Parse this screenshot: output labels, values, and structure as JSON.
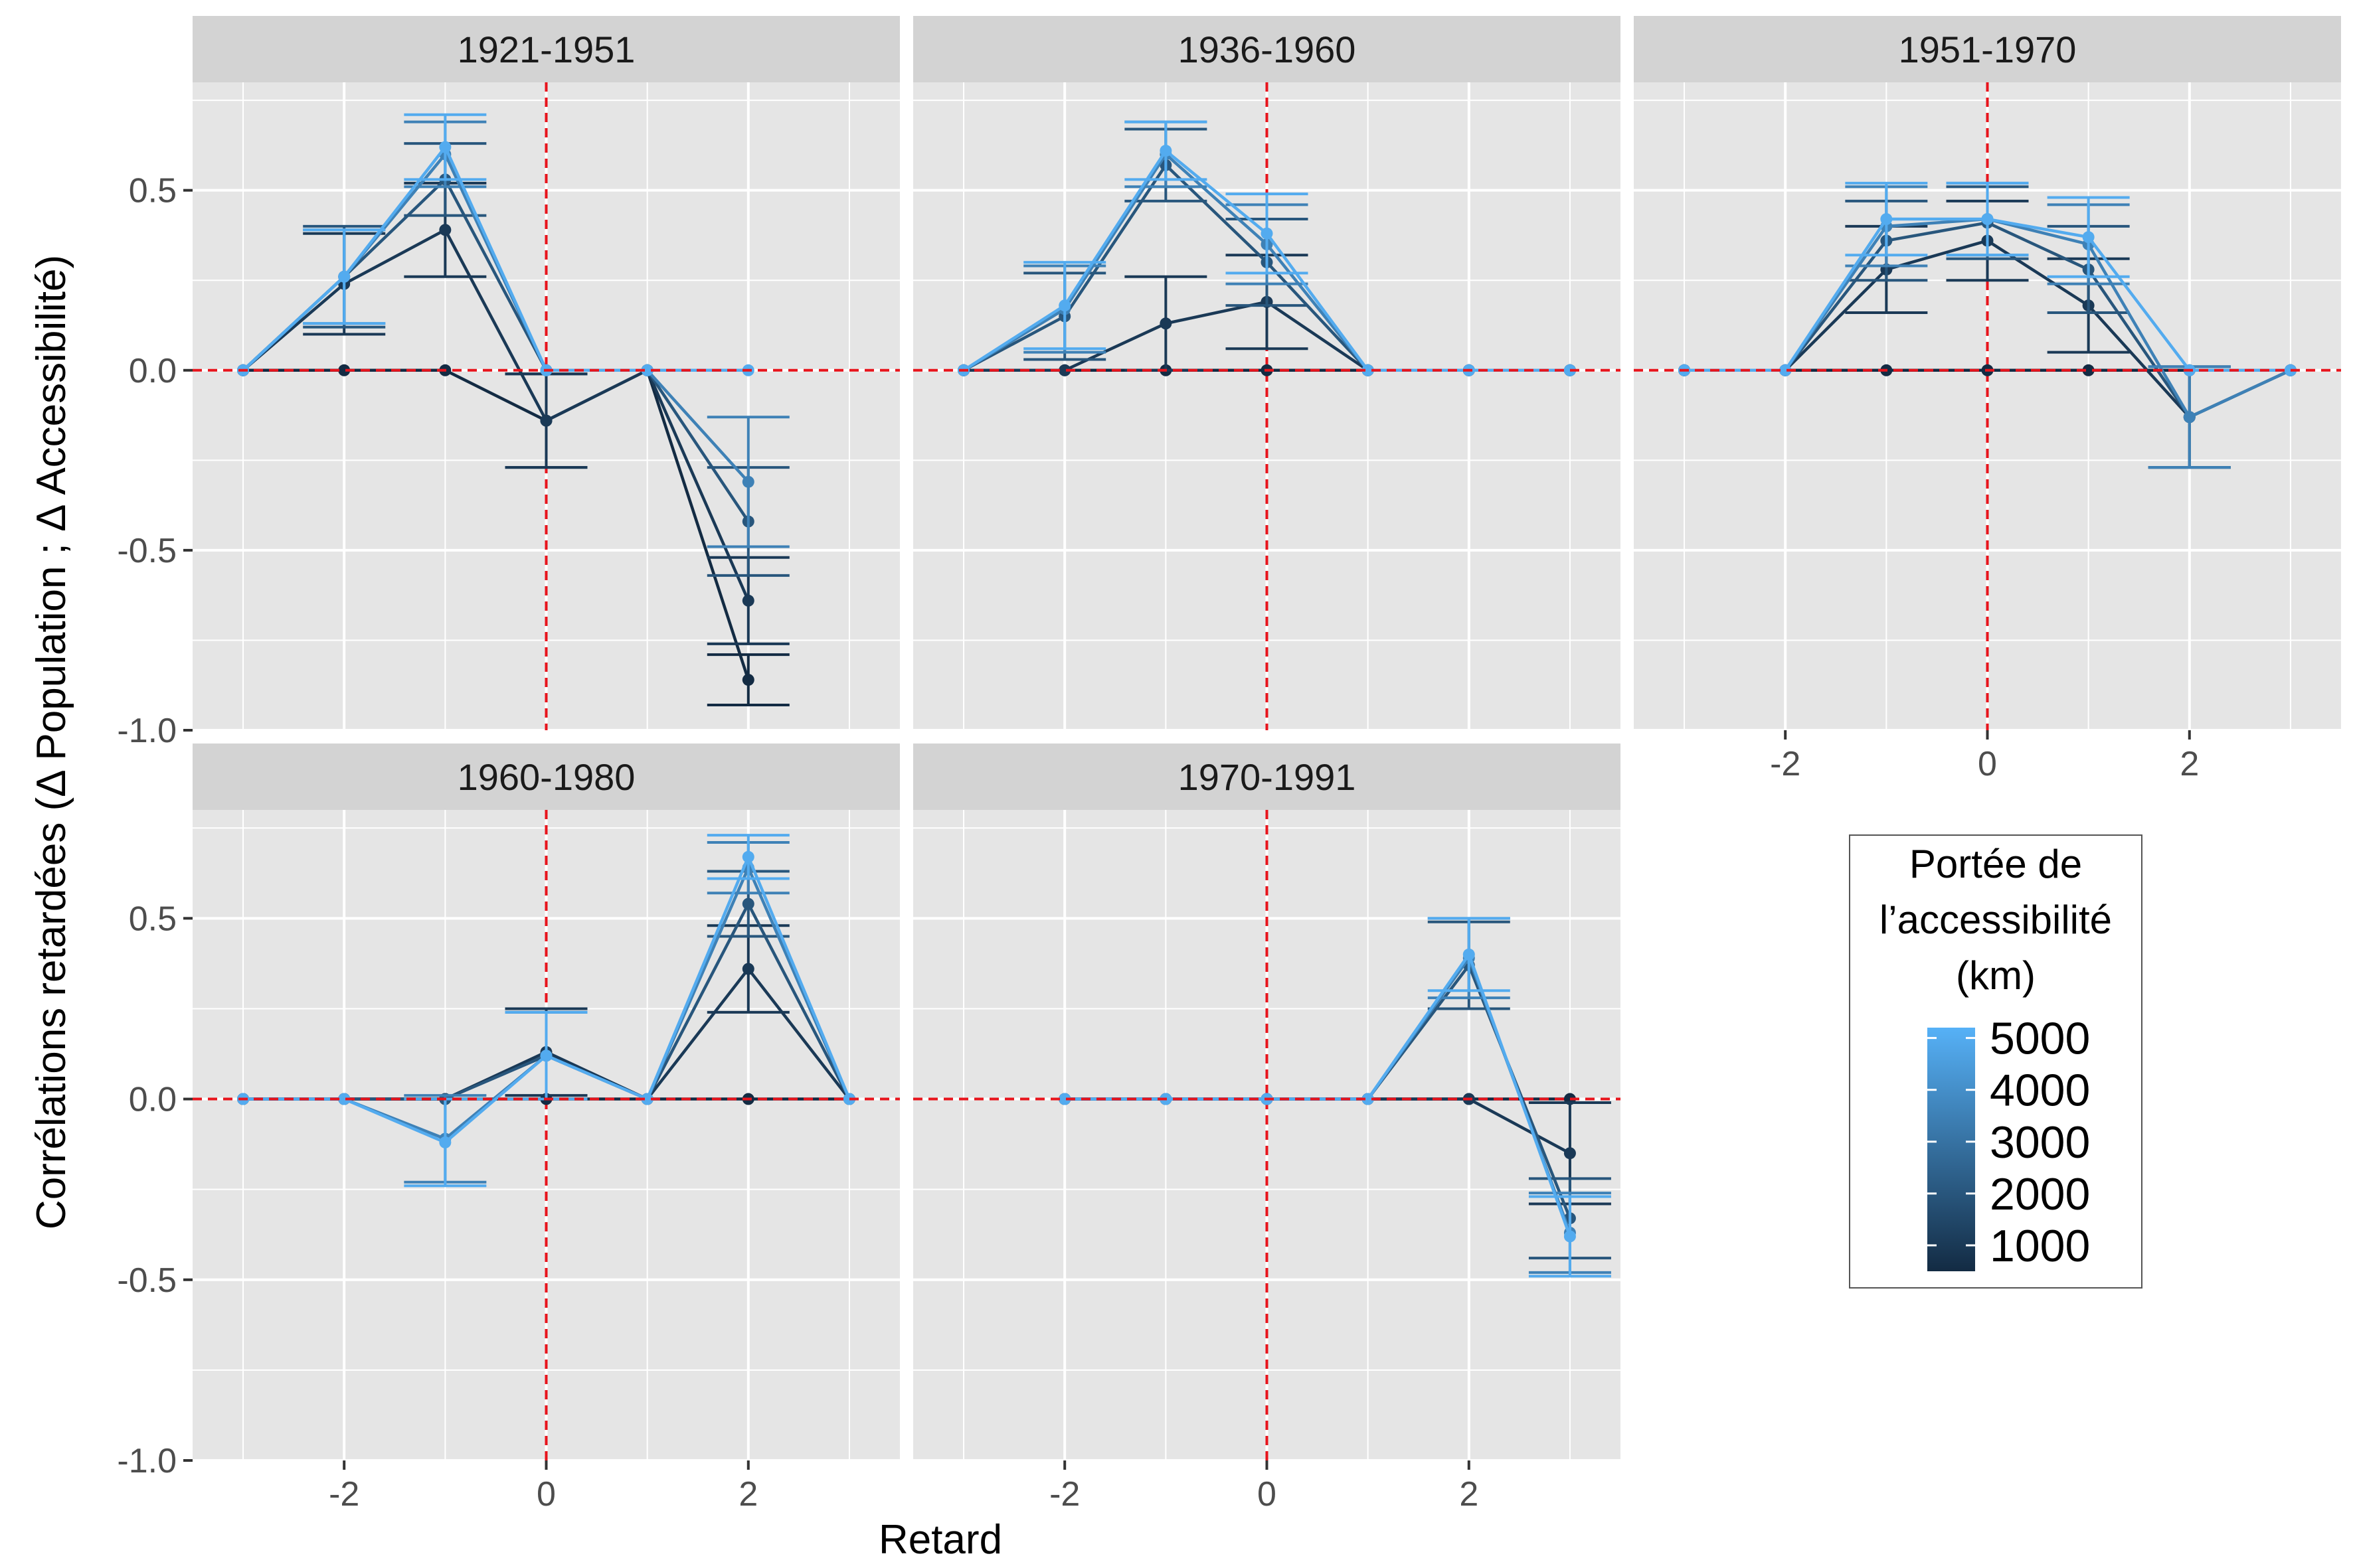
{
  "chart_data": {
    "type": "line",
    "xlabel": "Retard",
    "ylabel": "Corrélations retardées (Δ Population ; Δ Accessibilité)",
    "xlim": [
      -3.5,
      3.5
    ],
    "ylim": [
      -1.0,
      0.8
    ],
    "x_ticks": [
      -2,
      0,
      2
    ],
    "y_ticks": [
      -1.0,
      -0.5,
      0.0,
      0.5
    ],
    "x_tick_labels": [
      "-2",
      "0",
      "2"
    ],
    "y_tick_labels": [
      "-1.0",
      "-0.5",
      "0.0",
      "0.5"
    ],
    "reference_lines": {
      "x": 0,
      "y": 0,
      "style": "dashed",
      "color": "#e8141c"
    },
    "grid": true,
    "colors": {
      "panel_bg": "#e5e5e5",
      "strip_bg": "#d3d3d3",
      "grid": "#ffffff",
      "low": "#132b43",
      "high": "#56b1f7"
    },
    "legend": {
      "title": [
        "Portée de",
        "l’accessibilité",
        "(km)"
      ],
      "labels": [
        "5000",
        "4000",
        "3000",
        "2000",
        "1000"
      ],
      "values": [
        5000,
        4000,
        3000,
        2000,
        1000
      ],
      "range": [
        500,
        5200
      ],
      "placement": "right"
    },
    "panels": [
      {
        "title": "1921-1951",
        "series": [
          {
            "range": 500,
            "x": [
              -3,
              -2,
              -1,
              0,
              1,
              2
            ],
            "y": [
              0,
              0,
              0,
              -0.14,
              0,
              -0.86
            ],
            "err": [
              0,
              0,
              0,
              0.13,
              0,
              0.07
            ]
          },
          {
            "range": 1000,
            "x": [
              -3,
              -2,
              -1,
              0,
              1,
              2
            ],
            "y": [
              0,
              0.24,
              0.39,
              -0.14,
              0,
              -0.64
            ],
            "err": [
              0,
              0.14,
              0.13,
              0.13,
              0,
              0.12
            ]
          },
          {
            "range": 2000,
            "x": [
              -3,
              -2,
              -1,
              0,
              1,
              2
            ],
            "y": [
              0,
              0.26,
              0.53,
              0,
              0,
              -0.42
            ],
            "err": [
              0,
              0.14,
              0.1,
              0,
              0,
              0.15
            ]
          },
          {
            "range": 3500,
            "x": [
              -3,
              -2,
              -1,
              0,
              1,
              2
            ],
            "y": [
              0,
              0.26,
              0.6,
              0,
              0,
              -0.31
            ],
            "err": [
              0,
              0.13,
              0.09,
              0,
              0,
              0.18
            ]
          },
          {
            "range": 5000,
            "x": [
              -3,
              -2,
              -1,
              0,
              1,
              2
            ],
            "y": [
              0,
              0.26,
              0.62,
              0,
              0,
              0
            ],
            "err": [
              0,
              0.13,
              0.09,
              0,
              0,
              0
            ]
          }
        ]
      },
      {
        "title": "1936-1960",
        "series": [
          {
            "range": 500,
            "x": [
              -3,
              -2,
              -1,
              0,
              1,
              2,
              3
            ],
            "y": [
              0,
              0,
              0,
              0,
              0,
              0,
              0
            ],
            "err": [
              0,
              0,
              0,
              0,
              0,
              0,
              0
            ]
          },
          {
            "range": 1000,
            "x": [
              -3,
              -2,
              -1,
              0,
              1,
              2,
              3
            ],
            "y": [
              0,
              0,
              0.13,
              0.19,
              0,
              0,
              0
            ],
            "err": [
              0,
              0,
              0.13,
              0.13,
              0,
              0,
              0
            ]
          },
          {
            "range": 2000,
            "x": [
              -3,
              -2,
              -1,
              0,
              1,
              2,
              3
            ],
            "y": [
              0,
              0.15,
              0.57,
              0.3,
              0,
              0,
              0
            ],
            "err": [
              0,
              0.12,
              0.1,
              0.12,
              0,
              0,
              0
            ]
          },
          {
            "range": 3500,
            "x": [
              -3,
              -2,
              -1,
              0,
              1,
              2,
              3
            ],
            "y": [
              0,
              0.17,
              0.6,
              0.35,
              0,
              0,
              0
            ],
            "err": [
              0,
              0.12,
              0.09,
              0.11,
              0,
              0,
              0
            ]
          },
          {
            "range": 5000,
            "x": [
              -3,
              -2,
              -1,
              0,
              1,
              2,
              3
            ],
            "y": [
              0,
              0.18,
              0.61,
              0.38,
              0,
              0,
              0
            ],
            "err": [
              0,
              0.12,
              0.08,
              0.11,
              0,
              0,
              0
            ]
          }
        ]
      },
      {
        "title": "1951-1970",
        "series": [
          {
            "range": 500,
            "x": [
              -3,
              -2,
              -1,
              0,
              1,
              2,
              3
            ],
            "y": [
              0,
              0,
              0,
              0,
              0,
              0,
              0
            ],
            "err": [
              0,
              0,
              0,
              0,
              0,
              0,
              0
            ]
          },
          {
            "range": 1000,
            "x": [
              -3,
              -2,
              -1,
              0,
              1,
              2,
              3
            ],
            "y": [
              0,
              0,
              0.28,
              0.36,
              0.18,
              -0.13,
              0
            ],
            "err": [
              0,
              0,
              0.12,
              0.11,
              0.13,
              0.14,
              0
            ]
          },
          {
            "range": 2000,
            "x": [
              -3,
              -2,
              -1,
              0,
              1,
              2,
              3
            ],
            "y": [
              0,
              0,
              0.36,
              0.41,
              0.28,
              -0.13,
              0
            ],
            "err": [
              0,
              0,
              0.11,
              0.1,
              0.12,
              0.14,
              0
            ]
          },
          {
            "range": 3500,
            "x": [
              -3,
              -2,
              -1,
              0,
              1,
              2,
              3
            ],
            "y": [
              0,
              0,
              0.4,
              0.42,
              0.35,
              -0.13,
              0
            ],
            "err": [
              0,
              0,
              0.11,
              0.1,
              0.11,
              0.14,
              0
            ]
          },
          {
            "range": 5000,
            "x": [
              -3,
              -2,
              -1,
              0,
              1,
              2,
              3
            ],
            "y": [
              0,
              0,
              0.42,
              0.42,
              0.37,
              0,
              0
            ],
            "err": [
              0,
              0,
              0.1,
              0.1,
              0.11,
              0,
              0
            ]
          }
        ]
      },
      {
        "title": "1960-1980",
        "series": [
          {
            "range": 500,
            "x": [
              -3,
              -2,
              -1,
              0,
              1,
              2,
              3
            ],
            "y": [
              0,
              0,
              0,
              0,
              0,
              0,
              0
            ],
            "err": [
              0,
              0,
              0,
              0,
              0,
              0,
              0
            ]
          },
          {
            "range": 1000,
            "x": [
              -3,
              -2,
              -1,
              0,
              1,
              2,
              3
            ],
            "y": [
              0,
              0,
              0,
              0.13,
              0,
              0.36,
              0
            ],
            "err": [
              0,
              0,
              0,
              0.12,
              0,
              0.12,
              0
            ]
          },
          {
            "range": 2000,
            "x": [
              -3,
              -2,
              -1,
              0,
              1,
              2,
              3
            ],
            "y": [
              0,
              0,
              0,
              0.12,
              0,
              0.54,
              0
            ],
            "err": [
              0,
              0,
              0,
              0.12,
              0,
              0.09,
              0
            ]
          },
          {
            "range": 3500,
            "x": [
              -3,
              -2,
              -1,
              0,
              1,
              2,
              3
            ],
            "y": [
              0,
              0,
              -0.11,
              0.12,
              0,
              0.64,
              0
            ],
            "err": [
              0,
              0,
              0.12,
              0.12,
              0,
              0.07,
              0
            ]
          },
          {
            "range": 5000,
            "x": [
              -3,
              -2,
              -1,
              0,
              1,
              2,
              3
            ],
            "y": [
              0,
              0,
              -0.12,
              0.12,
              0,
              0.67,
              0
            ],
            "err": [
              0,
              0,
              0.12,
              0.12,
              0,
              0.06,
              0
            ]
          }
        ]
      },
      {
        "title": "1970-1991",
        "series": [
          {
            "range": 500,
            "x": [
              -2,
              -1,
              0,
              1,
              2,
              3
            ],
            "y": [
              0,
              0,
              0,
              0,
              0,
              0
            ],
            "err": [
              0,
              0,
              0,
              0,
              0,
              0
            ]
          },
          {
            "range": 1000,
            "x": [
              -2,
              -1,
              0,
              1,
              2,
              3
            ],
            "y": [
              0,
              0,
              0,
              0,
              0,
              -0.15
            ],
            "err": [
              0,
              0,
              0,
              0,
              0,
              0.14
            ]
          },
          {
            "range": 2000,
            "x": [
              -2,
              -1,
              0,
              1,
              2,
              3
            ],
            "y": [
              0,
              0,
              0,
              0,
              0.37,
              -0.33
            ],
            "err": [
              0,
              0,
              0,
              0,
              0.12,
              0.11
            ]
          },
          {
            "range": 3500,
            "x": [
              -2,
              -1,
              0,
              1,
              2,
              3
            ],
            "y": [
              0,
              0,
              0,
              0,
              0.39,
              -0.37
            ],
            "err": [
              0,
              0,
              0,
              0,
              0.11,
              0.11
            ]
          },
          {
            "range": 5000,
            "x": [
              -2,
              -1,
              0,
              1,
              2,
              3
            ],
            "y": [
              0,
              0,
              0,
              0,
              0.4,
              -0.38
            ],
            "err": [
              0,
              0,
              0,
              0,
              0.1,
              0.11
            ]
          }
        ]
      }
    ]
  }
}
